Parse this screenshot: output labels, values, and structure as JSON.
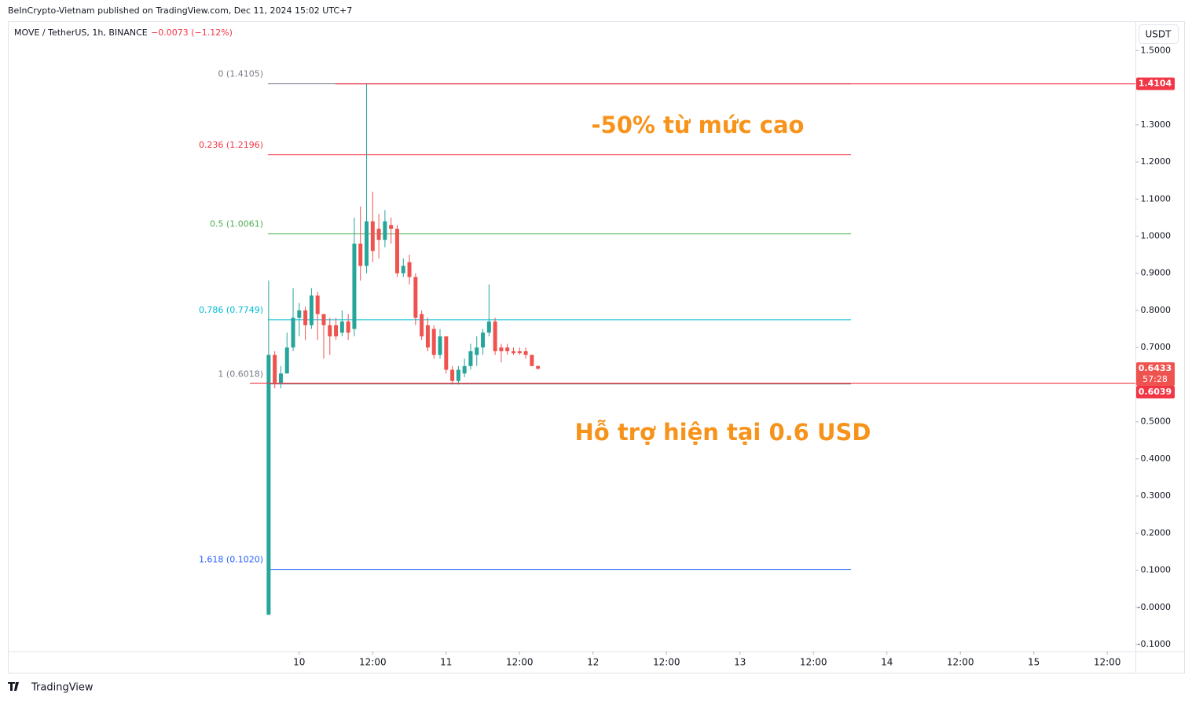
{
  "header": {
    "publisher": "BeInCrypto-Vietnam published on TradingView.com, Dec 11, 2024 15:02 UTC+7",
    "symbol": "MOVE / TetherUS, 1h, BINANCE",
    "change": "−0.0073 (−1.12%)",
    "currency": "USDT",
    "footer": "TradingView"
  },
  "chart_data": {
    "type": "candlestick",
    "up_color": "#26a69a",
    "down_color": "#ef5350",
    "x": [
      -5,
      -4,
      -3,
      -2,
      -1,
      0,
      1,
      2,
      3,
      4,
      5,
      6,
      7,
      8,
      9,
      10,
      11,
      12,
      13,
      14,
      15,
      16,
      17,
      18,
      19,
      20,
      21,
      22,
      23,
      24,
      25,
      26,
      27,
      28,
      29,
      30,
      31,
      32,
      33,
      34,
      35,
      36,
      37,
      38,
      39
    ],
    "open": [
      -0.02,
      0.68,
      0.605,
      0.63,
      0.7,
      0.78,
      0.8,
      0.76,
      0.84,
      0.79,
      0.76,
      0.76,
      0.74,
      0.77,
      0.75,
      0.98,
      0.92,
      1.04,
      1.02,
      0.99,
      1.03,
      1.02,
      0.9,
      0.93,
      0.89,
      0.79,
      0.76,
      0.75,
      0.68,
      0.73,
      0.64,
      0.61,
      0.63,
      0.65,
      0.68,
      0.7,
      0.74,
      0.77,
      0.7,
      0.7,
      0.69,
      0.69,
      0.69,
      0.68,
      0.65
    ],
    "high": [
      0.88,
      0.69,
      0.65,
      0.74,
      0.86,
      0.82,
      0.81,
      0.86,
      0.85,
      0.79,
      0.78,
      0.78,
      0.8,
      0.79,
      1.05,
      1.08,
      1.41,
      1.12,
      1.06,
      1.07,
      1.05,
      1.03,
      0.94,
      0.95,
      0.9,
      0.8,
      0.78,
      0.76,
      0.75,
      0.73,
      0.65,
      0.65,
      0.67,
      0.71,
      0.73,
      0.75,
      0.87,
      0.78,
      0.71,
      0.71,
      0.7,
      0.7,
      0.7,
      0.68,
      0.652
    ],
    "low": [
      -0.02,
      0.59,
      0.59,
      0.63,
      0.69,
      0.73,
      0.72,
      0.75,
      0.72,
      0.67,
      0.68,
      0.72,
      0.73,
      0.72,
      0.73,
      0.88,
      0.9,
      0.93,
      0.94,
      0.97,
      0.98,
      0.89,
      0.89,
      0.87,
      0.76,
      0.72,
      0.69,
      0.67,
      0.67,
      0.63,
      0.6,
      0.6,
      0.62,
      0.64,
      0.65,
      0.68,
      0.73,
      0.68,
      0.66,
      0.68,
      0.68,
      0.68,
      0.67,
      0.65,
      0.64
    ],
    "close": [
      0.68,
      0.605,
      0.63,
      0.7,
      0.78,
      0.8,
      0.76,
      0.84,
      0.79,
      0.76,
      0.73,
      0.73,
      0.77,
      0.74,
      0.98,
      0.92,
      1.04,
      0.96,
      0.99,
      1.04,
      1.02,
      0.9,
      0.92,
      0.89,
      0.78,
      0.73,
      0.7,
      0.68,
      0.73,
      0.64,
      0.61,
      0.64,
      0.65,
      0.69,
      0.7,
      0.74,
      0.77,
      0.69,
      0.69,
      0.69,
      0.685,
      0.685,
      0.68,
      0.65,
      0.643
    ],
    "xlim": [
      -47.6,
      136.6
    ],
    "xticks": [
      {
        "value": 0,
        "label": "10"
      },
      {
        "value": 12,
        "label": "12:00"
      },
      {
        "value": 24,
        "label": "11"
      },
      {
        "value": 36,
        "label": "12:00"
      },
      {
        "value": 48,
        "label": "12"
      },
      {
        "value": 60,
        "label": "12:00"
      },
      {
        "value": 72,
        "label": "13"
      },
      {
        "value": 84,
        "label": "12:00"
      },
      {
        "value": 96,
        "label": "14"
      },
      {
        "value": 108,
        "label": "12:00"
      },
      {
        "value": 120,
        "label": "15"
      },
      {
        "value": 132,
        "label": "12:00"
      }
    ],
    "ylim": [
      -0.119,
      1.577
    ],
    "yticks": [
      {
        "value": 1.5,
        "label": "1.5000"
      },
      {
        "value": 1.3,
        "label": "1.3000"
      },
      {
        "value": 1.2,
        "label": "1.2000"
      },
      {
        "value": 1.1,
        "label": "1.1000"
      },
      {
        "value": 1.0,
        "label": "1.0000"
      },
      {
        "value": 0.9,
        "label": "0.9000"
      },
      {
        "value": 0.8,
        "label": "0.8000"
      },
      {
        "value": 0.7,
        "label": "0.7000"
      },
      {
        "value": 0.5,
        "label": "0.5000"
      },
      {
        "value": 0.4,
        "label": "0.4000"
      },
      {
        "value": 0.3,
        "label": "0.3000"
      },
      {
        "value": 0.2,
        "label": "0.2000"
      },
      {
        "value": 0.1,
        "label": "0.1000"
      },
      {
        "value": 0,
        "label": "-0.0000"
      },
      {
        "value": -0.1,
        "label": "-0.1000"
      }
    ],
    "grid": false,
    "fib_levels": [
      {
        "value": 1.4105,
        "label": "0 (1.4105)",
        "color": "#787b86"
      },
      {
        "value": 1.2196,
        "label": "0.236 (1.2196)",
        "color": "#f23645"
      },
      {
        "value": 1.0061,
        "label": "0.5 (1.0061)",
        "color": "#4caf50"
      },
      {
        "value": 0.7749,
        "label": "0.786 (0.7749)",
        "color": "#00bcd4"
      },
      {
        "value": 0.6018,
        "label": "1 (0.6018)",
        "color": "#787b86"
      },
      {
        "value": 0.102,
        "label": "1.618 (0.1020)",
        "color": "#2962ff"
      }
    ],
    "price_labels": [
      {
        "value": 1.4104,
        "label": "1.4104",
        "line": true
      },
      {
        "value": 0.6433,
        "label": "0.6433",
        "countdown": "57:28",
        "line": false
      },
      {
        "value": 0.6039,
        "label": "0.6039",
        "line": true
      }
    ],
    "annotations": [
      "-50% từ mức cao",
      "Hỗ trợ hiện tại 0.6 USD"
    ],
    "annotation_color": "#f7931a"
  }
}
